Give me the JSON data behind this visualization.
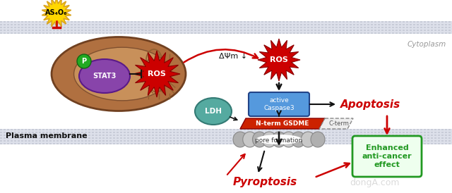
{
  "bg_color": "#ffffff",
  "membrane_stripe_color": "#c8ccd8",
  "membrane_bg_color": "#dde0ea",
  "cytoplasm_label": "Cytoplasm",
  "plasma_membrane_label": "Plasma membrane",
  "as4o6_label": "AS₄O₆",
  "ros_label": "ROS",
  "stat3_label": "STAT3",
  "p_label": "P",
  "ldh_label": "LDH",
  "delta_psi_label": "ΔΨm ↓",
  "active_caspase3_label": "active\nCaspase3",
  "nterm_label": "N-term GSDME",
  "cterm_label": "C-term",
  "pore_label": "pore formation",
  "apoptosis_label": "Apoptosis",
  "pyroptosis_label": "Pyroptosis",
  "enhanced_label": "Enhanced\nanti-cancer\neffect",
  "star_yellow": "#FFD700",
  "star_border": "#DAA520",
  "ros_red": "#CC0000",
  "ros_dark": "#880000",
  "mito_outer": "#b07040",
  "mito_inner": "#c8905a",
  "mito_cristae": "#906030",
  "stat3_purple": "#8844aa",
  "p_green": "#22aa22",
  "caspase_blue": "#5599dd",
  "ldh_teal": "#55aaa0",
  "gsdme_red": "#cc2200",
  "enhanced_green": "#229922",
  "enhanced_bg": "#eeffee",
  "arrow_red": "#cc0000",
  "text_red": "#cc0000",
  "text_green": "#229922",
  "watermark": "dongA.com",
  "watermark_color": "#cccccc"
}
